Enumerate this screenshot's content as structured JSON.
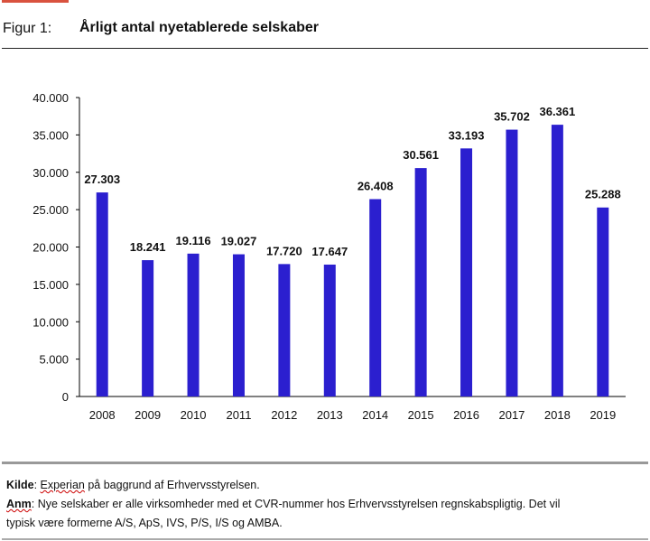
{
  "header": {
    "figure_label": "Figur 1:",
    "title": "Årligt antal nyetablerede selskaber",
    "accent_color": "#d9523e"
  },
  "chart_data": {
    "type": "bar",
    "title": "Årligt antal nyetablerede selskaber",
    "categories": [
      "2008",
      "2009",
      "2010",
      "2011",
      "2012",
      "2013",
      "2014",
      "2015",
      "2016",
      "2017",
      "2018",
      "2019"
    ],
    "values": [
      27303,
      18241,
      19116,
      19027,
      17720,
      17647,
      26408,
      30561,
      33193,
      35702,
      36361,
      25288
    ],
    "data_labels": [
      "27.303",
      "18.241",
      "19.116",
      "19.027",
      "17.720",
      "17.647",
      "26.408",
      "30.561",
      "33.193",
      "35.702",
      "36.361",
      "25.288"
    ],
    "yticks": [
      0,
      5000,
      10000,
      15000,
      20000,
      25000,
      30000,
      35000,
      40000
    ],
    "ytick_labels": [
      "0",
      "5.000",
      "10.000",
      "15.000",
      "20.000",
      "25.000",
      "30.000",
      "35.000",
      "40.000"
    ],
    "ylim": [
      0,
      40000
    ],
    "xlabel": "",
    "ylabel": "",
    "grid": false,
    "bar_color": "#2b1fcf"
  },
  "footer": {
    "source_label": "Kilde",
    "source_text": "Experian",
    "source_rest": " på baggrund af Erhvervsstyrelsen.",
    "note_label": "Anm",
    "note_line1": ": Nye selskaber er alle virksomheder med et CVR-nummer hos Erhvervsstyrelsen regnskabspligtig. Det vil",
    "note_line2": "typisk være formerne A/S, ApS, IVS, P/S, I/S og AMBA."
  }
}
